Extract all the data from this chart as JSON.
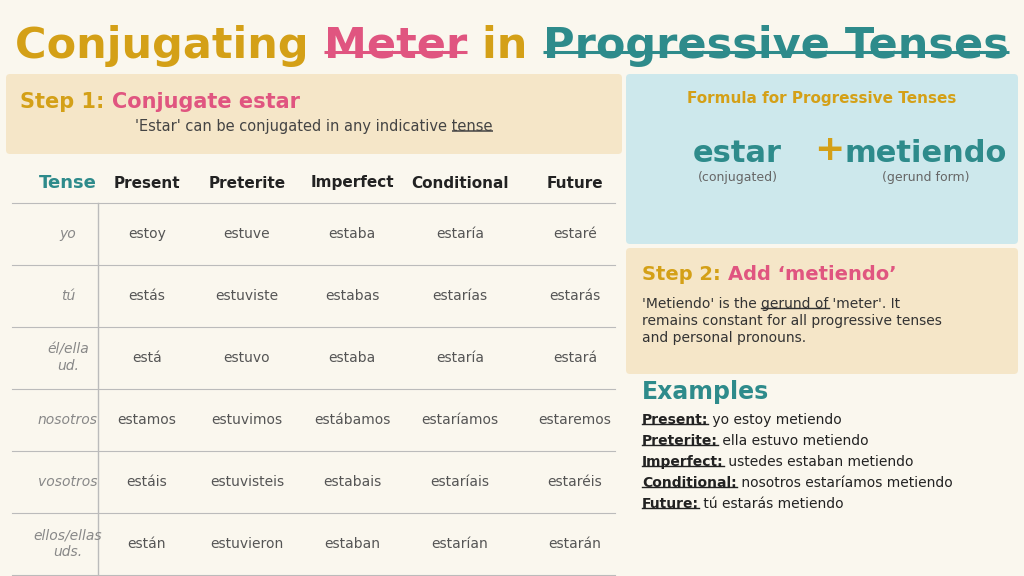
{
  "bg_color": "#faf7ee",
  "title_parts": [
    {
      "text": "Conjugating ",
      "color": "#d4a017",
      "bold": true,
      "underline": false
    },
    {
      "text": "Meter",
      "color": "#e05580",
      "bold": true,
      "underline": true
    },
    {
      "text": " in ",
      "color": "#d4a017",
      "bold": true,
      "underline": false
    },
    {
      "text": "Progressive Tenses",
      "color": "#2e8b8b",
      "bold": true,
      "underline": true
    }
  ],
  "step1_box_color": "#f5e6c8",
  "step1_title_color1": "#d4a017",
  "step1_title_color2": "#e05580",
  "step1_title": "Step 1: ",
  "step1_title2": "Conjugate estar",
  "step1_subtitle1": "'Estar' can be conjugated in any indicative ",
  "step1_subtitle2": "tense",
  "tense_header_color": "#2e8b8b",
  "tense_header": "Tense",
  "col_headers": [
    "Present",
    "Preterite",
    "Imperfect",
    "Conditional",
    "Future"
  ],
  "pronouns": [
    "yo",
    "tú",
    "él/ella\nud.",
    "nosotros",
    "vosotros",
    "ellos/ellas\nuds."
  ],
  "table_data": [
    [
      "estoy",
      "estuve",
      "estaba",
      "estaría",
      "estaré"
    ],
    [
      "estás",
      "estuviste",
      "estabas",
      "estarías",
      "estarás"
    ],
    [
      "está",
      "estuvo",
      "estaba",
      "estaría",
      "estará"
    ],
    [
      "estamos",
      "estuvimos",
      "estábamos",
      "estaríamos",
      "estaremos"
    ],
    [
      "estáis",
      "estuvisteis",
      "estabais",
      "estaríais",
      "estaréis"
    ],
    [
      "están",
      "estuvieron",
      "estaban",
      "estarían",
      "estarán"
    ]
  ],
  "formula_box_color": "#cde8ec",
  "formula_title": "Formula for Progressive Tenses",
  "formula_title_color": "#d4a017",
  "formula_estar": "estar",
  "formula_estar_color": "#2e8b8b",
  "formula_plus": "+",
  "formula_plus_color": "#d4a017",
  "formula_metiendo": "metiendo",
  "formula_metiendo_color": "#2e8b8b",
  "formula_conj": "(conjugated)",
  "formula_gerund": "(gerund form)",
  "formula_sub_color": "#666666",
  "step2_box_color": "#f5e6c8",
  "step2_title": "Step 2: ",
  "step2_title2": "Add ‘metiendo’",
  "step2_title_color1": "#d4a017",
  "step2_title_color2": "#e05580",
  "step2_text1": "'Metiendo' is the ",
  "step2_text2": "gerund of",
  "step2_text3": " 'meter'. It\nremains constant for all progressive tenses\nand personal pronouns.",
  "examples_title": "Examples",
  "examples_title_color": "#2e8b8b",
  "examples": [
    {
      "label": "Present:",
      "text": " yo estoy metiendo"
    },
    {
      "label": "Preterite:",
      "text": " ella estuvo metiendo"
    },
    {
      "label": "Imperfect:",
      "text": " ustedes estaban metiendo"
    },
    {
      "label": "Conditional:",
      "text": " nosotros estaríamos metiendo"
    },
    {
      "label": "Future:",
      "text": " tú estarás metiendo"
    }
  ],
  "examples_label_color": "#222222",
  "table_line_color": "#bbbbbb",
  "table_text_color": "#555555",
  "pronoun_color": "#888888"
}
